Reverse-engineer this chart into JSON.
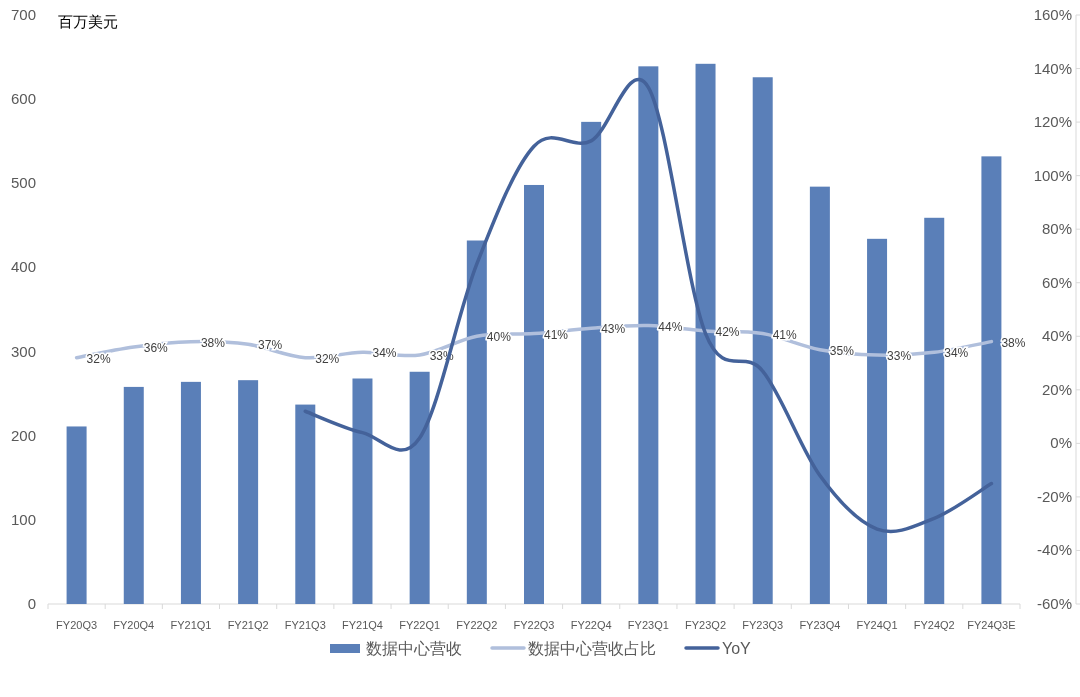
{
  "chart_data": {
    "type": "bar",
    "ylabel": "百万美元",
    "legend": "bottom",
    "categories": [
      "FY20Q3",
      "FY20Q4",
      "FY21Q1",
      "FY21Q2",
      "FY21Q3",
      "FY21Q4",
      "FY22Q1",
      "FY22Q2",
      "FY22Q3",
      "FY22Q4",
      "FY23Q1",
      "FY23Q2",
      "FY23Q3",
      "FY23Q4",
      "FY24Q1",
      "FY24Q2",
      "FY24Q3E"
    ],
    "ylim": [
      0,
      700
    ],
    "yticks": [
      0,
      100,
      200,
      300,
      400,
      500,
      600,
      700
    ],
    "y2lim": [
      -60,
      160
    ],
    "y2ticks": [
      {
        "value": -60,
        "label": "-60%"
      },
      {
        "value": -40,
        "label": "-40%"
      },
      {
        "value": -20,
        "label": "-20%"
      },
      {
        "value": 0,
        "label": "0%"
      },
      {
        "value": 20,
        "label": "20%"
      },
      {
        "value": 40,
        "label": "40%"
      },
      {
        "value": 60,
        "label": "60%"
      },
      {
        "value": 80,
        "label": "80%"
      },
      {
        "value": 100,
        "label": "100%"
      },
      {
        "value": 120,
        "label": "120%"
      },
      {
        "value": 140,
        "label": "140%"
      },
      {
        "value": 160,
        "label": "160%"
      }
    ],
    "series": [
      {
        "name": "数据中心营收",
        "color": "#5a7fb8",
        "values": [
          211,
          258,
          264,
          266,
          237,
          268,
          276,
          432,
          498,
          573,
          639,
          642,
          626,
          496,
          434,
          459,
          532
        ]
      },
      {
        "name": "数据中心营收占比",
        "type": "line",
        "axis": "y2",
        "color": "#b0bfdc",
        "values": [
          32,
          36,
          38,
          37,
          32,
          34,
          33,
          40,
          41,
          43,
          44,
          42,
          41,
          35,
          33,
          34,
          38
        ],
        "value_labels": [
          "32%",
          "36%",
          "38%",
          "37%",
          "32%",
          "34%",
          "33%",
          "40%",
          "41%",
          "43%",
          "44%",
          "42%",
          "41%",
          "35%",
          "33%",
          "34%",
          "38%"
        ]
      },
      {
        "name": "YoY",
        "type": "line",
        "axis": "y2",
        "color": "#44629a",
        "values": [
          null,
          null,
          null,
          null,
          12,
          4,
          2,
          67,
          111,
          113,
          133,
          41,
          27,
          -12,
          -32,
          -28,
          -15
        ]
      }
    ]
  }
}
